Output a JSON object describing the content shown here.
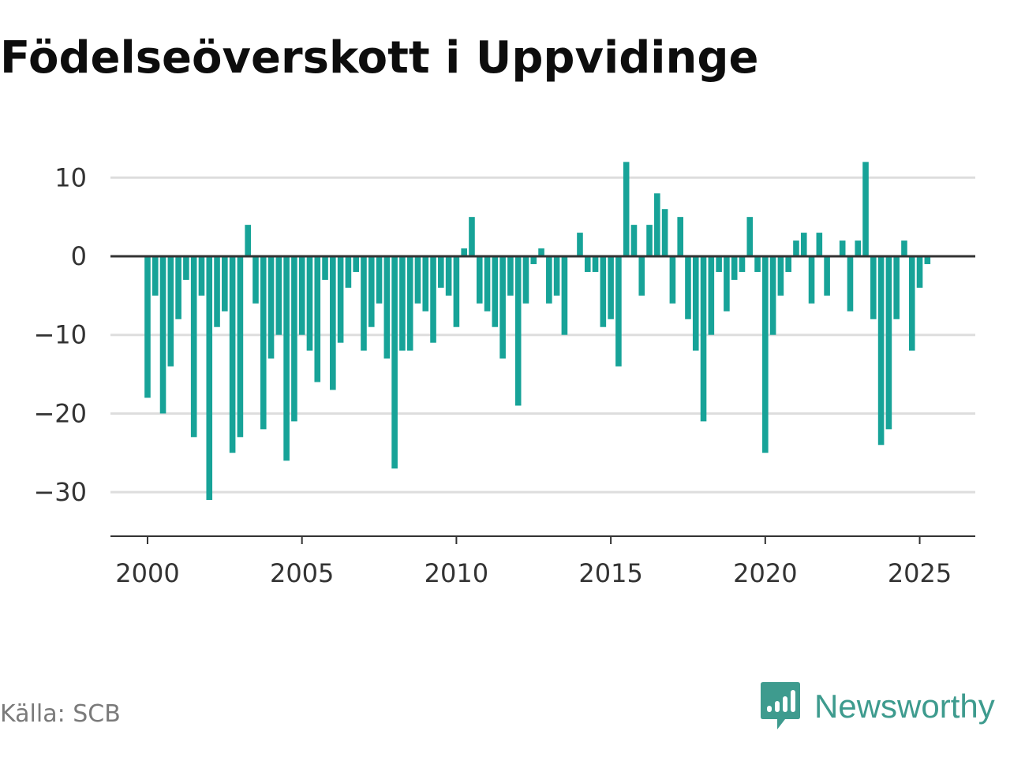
{
  "chart_data": {
    "type": "bar",
    "title": "Födelseöverskott i Uppvidinge",
    "source": "Källa: SCB",
    "brand": "Newsworthy",
    "bar_color": "#17a398",
    "grid_color": "#dddddd",
    "zero_line_color": "#333333",
    "xlim": [
      1998.8,
      2026.8
    ],
    "ylim": [
      -35.6,
      12
    ],
    "yticks": [
      10,
      0,
      -10,
      -20,
      -30
    ],
    "ytick_labels": [
      "10",
      "0",
      "−10",
      "−20",
      "−30"
    ],
    "xticks": [
      2000,
      2005,
      2010,
      2015,
      2020,
      2025
    ],
    "xtick_labels": [
      "2000",
      "2005",
      "2010",
      "2015",
      "2020",
      "2025"
    ],
    "grid": true,
    "series": [
      {
        "period_start": "2000-Q1",
        "values": [
          -18,
          -5,
          -20,
          -14,
          -8,
          -3,
          -23,
          -5,
          -31,
          -9,
          -7,
          -25,
          -23,
          4,
          -6,
          -22,
          -13,
          -10,
          -26,
          -21,
          -10,
          -12,
          -16,
          -3,
          -17,
          -11,
          -4,
          -2,
          -12,
          -9,
          -6,
          -13,
          -27,
          -12,
          -12,
          -6,
          -7,
          -11,
          -4,
          -5,
          -9,
          1,
          5,
          -6,
          -7,
          -9,
          -13,
          -5,
          -19,
          -6,
          -1,
          1,
          -6,
          -5,
          -10,
          0,
          3,
          -2,
          -2,
          -9,
          -8,
          -14,
          12,
          4,
          -5,
          4,
          8,
          6,
          -6,
          5,
          -8,
          -12,
          -21,
          -10,
          -2,
          -7,
          -3,
          -2,
          5,
          -2,
          -25,
          -10,
          -5,
          -2,
          2,
          3,
          -6,
          3,
          -5,
          0,
          2,
          -7,
          2,
          12,
          -8,
          -24,
          -22,
          -8,
          2,
          -12,
          -4,
          -1
        ]
      }
    ]
  },
  "colors": {
    "title": "#0d0d0d",
    "source": "#7a7a7a",
    "brand": "#3e9b8e",
    "axis": "#333333"
  },
  "icons": {
    "brand_logo": "newsworthy-logo-icon"
  }
}
